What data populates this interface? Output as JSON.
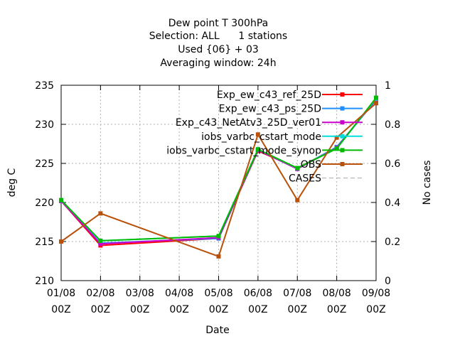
{
  "chart_data": {
    "type": "line",
    "title_lines": [
      "Dew point T 300hPa",
      "Selection: ALL      1 stations",
      "Used {06} + 03",
      "Averaging window: 24h"
    ],
    "xlabel": "Date",
    "ylabel": "deg C",
    "y2label": "No cases",
    "categories": [
      "01/08",
      "02/08",
      "03/08",
      "04/08",
      "05/08",
      "06/08",
      "07/08",
      "08/08",
      "09/08"
    ],
    "x_tick_sublabel": "00Z",
    "ylim": [
      210,
      235
    ],
    "yticks": [
      210,
      215,
      220,
      225,
      230,
      235
    ],
    "y2lim": [
      0,
      1
    ],
    "y2ticks": [
      "0",
      "0.2",
      "0.4",
      "0.6",
      "0.8",
      "1"
    ],
    "grid": true,
    "legend_position": "top-right",
    "series": [
      {
        "name": "Exp_ew_c43_ref_25D",
        "color": "#ff0000",
        "dash": "",
        "marker": "square",
        "x": [
          0,
          1,
          4,
          5,
          6,
          7,
          8
        ],
        "values": [
          220.2,
          214.5,
          215.4,
          226.6,
          224.4,
          227.0,
          233.2
        ]
      },
      {
        "name": "Exp_ew_c43_ps_25D",
        "color": "#1e90ff",
        "dash": "",
        "marker": "square",
        "x": [
          0,
          1,
          4,
          5,
          6,
          7,
          8
        ],
        "values": [
          220.2,
          214.8,
          215.4,
          226.7,
          224.3,
          227.1,
          233.1
        ]
      },
      {
        "name": "Exp_c43_NetAtv3_25D_ver01",
        "color": "#cc00cc",
        "dash": "",
        "marker": "square",
        "x": [
          0,
          1,
          4,
          5,
          6,
          7,
          8
        ],
        "values": [
          220.2,
          214.7,
          215.5,
          226.7,
          224.3,
          227.0,
          233.2
        ]
      },
      {
        "name": "iobs_varbc_cstart_mode",
        "color": "#00dddd",
        "dash": "",
        "marker": "square",
        "x": [
          0,
          1,
          4,
          5,
          6,
          7,
          8
        ],
        "values": [
          220.3,
          215.1,
          215.7,
          226.8,
          224.4,
          226.9,
          233.3
        ]
      },
      {
        "name": "iobs_varbc_cstart_mode_synop",
        "color": "#00bb00",
        "dash": "",
        "marker": "square",
        "x": [
          0,
          1,
          4,
          5,
          6,
          7,
          8
        ],
        "values": [
          220.3,
          215.1,
          215.7,
          226.8,
          224.4,
          226.9,
          233.4
        ]
      },
      {
        "name": "OBS",
        "color": "#b8520b",
        "dash": "",
        "marker": "square",
        "x": [
          0,
          1,
          4,
          5,
          6,
          7,
          8
        ],
        "values": [
          215.0,
          218.6,
          213.1,
          228.7,
          220.3,
          228.3,
          232.7
        ]
      },
      {
        "name": "CASES",
        "color": "#aaaaaa",
        "dash": "6,4",
        "marker": "none",
        "x": [],
        "values": []
      }
    ]
  }
}
